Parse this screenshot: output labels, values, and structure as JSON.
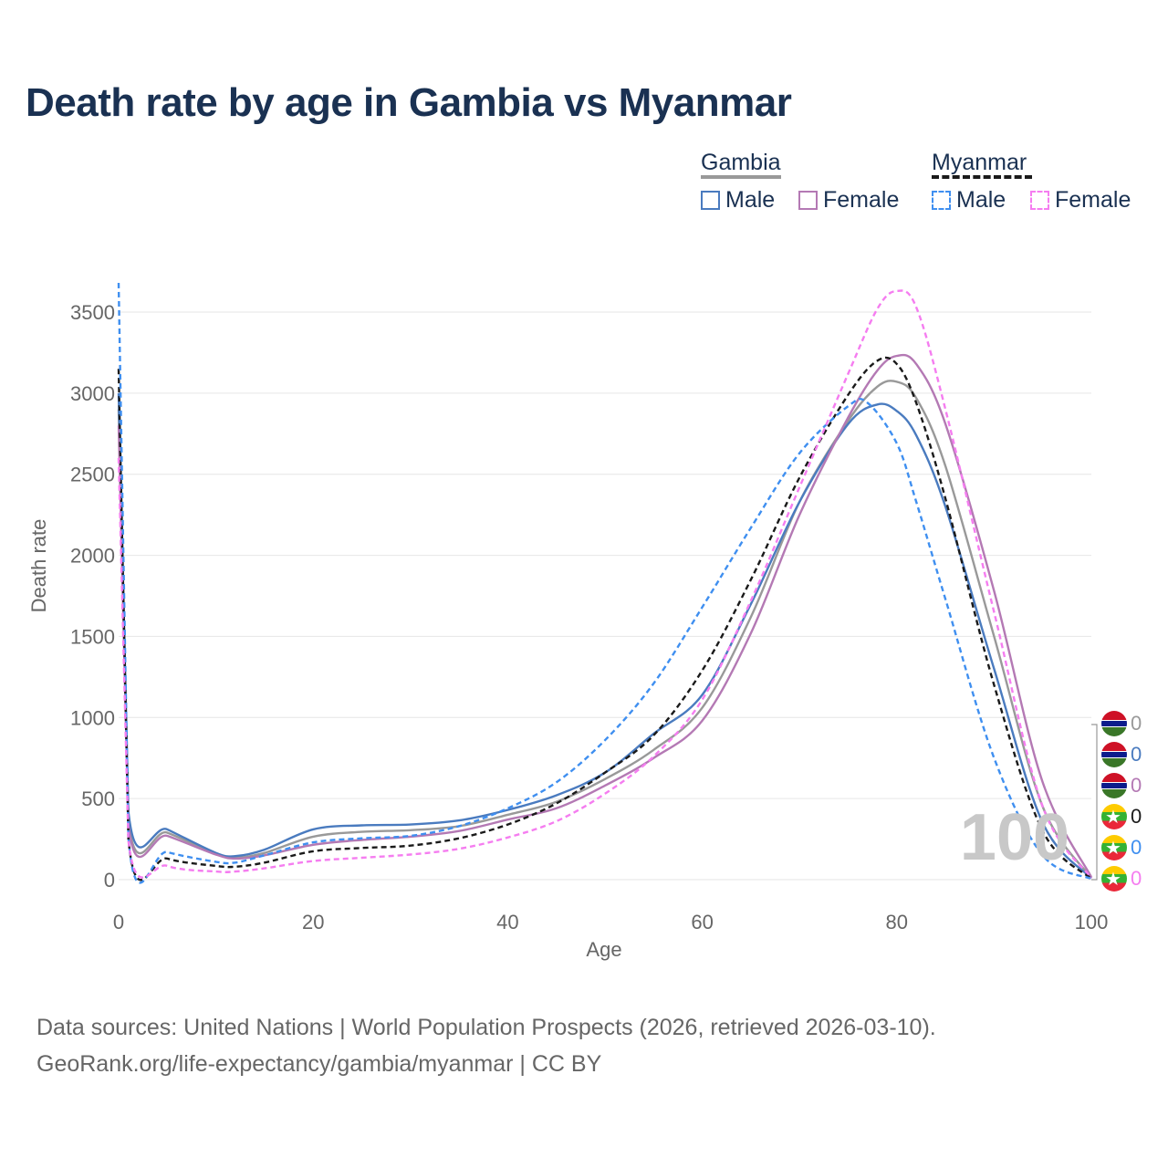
{
  "title": "Death rate by age in Gambia vs Myanmar",
  "legend": {
    "groups": [
      {
        "name": "Gambia",
        "line_color": "#999999",
        "dash": false,
        "items": [
          {
            "label": "Male",
            "color": "#4a7bbf"
          },
          {
            "label": "Female",
            "color": "#b479b4"
          }
        ]
      },
      {
        "name": "Myanmar",
        "line_color": "#1a1a1a",
        "dash": true,
        "items": [
          {
            "label": "Male",
            "color": "#3f8ff0"
          },
          {
            "label": "Female",
            "color": "#f57df0"
          }
        ]
      }
    ]
  },
  "watermark": "100",
  "source": {
    "line1": "Data sources: United Nations | World Population Prospects (2026, retrieved 2026-03-10).",
    "line2": "GeoRank.org/life-expectancy/gambia/myanmar | CC BY"
  },
  "end_markers": [
    {
      "country": "Gambia",
      "value": "0",
      "color": "#999999"
    },
    {
      "country": "Gambia",
      "value": "0",
      "color": "#4a7bbf"
    },
    {
      "country": "Gambia",
      "value": "0",
      "color": "#b479b4"
    },
    {
      "country": "Myanmar",
      "value": "0",
      "color": "#1a1a1a"
    },
    {
      "country": "Myanmar",
      "value": "0",
      "color": "#3f8ff0"
    },
    {
      "country": "Myanmar",
      "value": "0",
      "color": "#f57df0"
    }
  ],
  "chart_data": {
    "type": "line",
    "title": "Death rate by age in Gambia vs Myanmar",
    "xlabel": "Age",
    "ylabel": "Death rate",
    "xlim": [
      0,
      100
    ],
    "ylim": [
      0,
      3700
    ],
    "xticks": [
      0,
      20,
      40,
      60,
      80,
      100
    ],
    "yticks": [
      0,
      500,
      1000,
      1500,
      2000,
      2500,
      3000,
      3500
    ],
    "grid": true,
    "series": [
      {
        "name": "Gambia (total)",
        "color": "#999999",
        "dash": false,
        "x": [
          0,
          1,
          5,
          10,
          12,
          15,
          20,
          25,
          30,
          35,
          40,
          45,
          50,
          55,
          60,
          65,
          70,
          75,
          78,
          80,
          82,
          85,
          90,
          95,
          100
        ],
        "y": [
          2900,
          370,
          290,
          160,
          135,
          165,
          265,
          295,
          305,
          330,
          400,
          480,
          620,
          800,
          1060,
          1620,
          2330,
          2830,
          3040,
          3070,
          2970,
          2550,
          1500,
          450,
          10
        ]
      },
      {
        "name": "Gambia Male",
        "color": "#4a7bbf",
        "dash": false,
        "x": [
          0,
          1,
          5,
          10,
          12,
          15,
          20,
          25,
          30,
          35,
          40,
          45,
          50,
          55,
          60,
          65,
          70,
          75,
          78,
          80,
          82,
          85,
          90,
          95,
          100
        ],
        "y": [
          3000,
          420,
          310,
          165,
          145,
          185,
          310,
          335,
          340,
          365,
          430,
          520,
          660,
          900,
          1140,
          1700,
          2330,
          2810,
          2930,
          2890,
          2740,
          2300,
          1300,
          350,
          8
        ]
      },
      {
        "name": "Gambia Female",
        "color": "#b479b4",
        "dash": false,
        "x": [
          0,
          1,
          5,
          10,
          12,
          15,
          20,
          25,
          30,
          35,
          40,
          45,
          50,
          55,
          60,
          65,
          70,
          75,
          78,
          80,
          82,
          85,
          90,
          95,
          100
        ],
        "y": [
          2800,
          340,
          270,
          155,
          130,
          150,
          215,
          245,
          265,
          300,
          370,
          440,
          580,
          750,
          980,
          1520,
          2250,
          2850,
          3140,
          3230,
          3180,
          2810,
          1780,
          600,
          15
        ]
      },
      {
        "name": "Myanmar (total)",
        "color": "#1a1a1a",
        "dash": true,
        "x": [
          0,
          1,
          5,
          10,
          12,
          15,
          20,
          25,
          30,
          35,
          40,
          45,
          50,
          55,
          60,
          65,
          70,
          75,
          78,
          80,
          82,
          85,
          90,
          95,
          100
        ],
        "y": [
          3150,
          250,
          130,
          85,
          80,
          105,
          175,
          195,
          210,
          255,
          340,
          470,
          660,
          890,
          1290,
          1850,
          2480,
          2990,
          3200,
          3180,
          2940,
          2350,
          1200,
          300,
          5
        ]
      },
      {
        "name": "Myanmar Male",
        "color": "#3f8ff0",
        "dash": true,
        "x": [
          0,
          1,
          5,
          10,
          12,
          15,
          20,
          25,
          30,
          35,
          40,
          45,
          50,
          55,
          60,
          65,
          70,
          75,
          77,
          80,
          82,
          85,
          90,
          95,
          100
        ],
        "y": [
          3680,
          260,
          170,
          110,
          105,
          150,
          230,
          255,
          270,
          330,
          440,
          600,
          860,
          1210,
          1680,
          2170,
          2630,
          2920,
          2940,
          2690,
          2330,
          1730,
          750,
          150,
          5
        ]
      },
      {
        "name": "Myanmar Female",
        "color": "#f57df0",
        "dash": true,
        "x": [
          0,
          1,
          5,
          10,
          12,
          15,
          20,
          25,
          30,
          35,
          40,
          45,
          50,
          55,
          60,
          65,
          70,
          75,
          78,
          80,
          82,
          85,
          90,
          95,
          100
        ],
        "y": [
          2600,
          240,
          85,
          50,
          50,
          70,
          115,
          135,
          155,
          190,
          260,
          360,
          530,
          760,
          1110,
          1720,
          2420,
          3120,
          3520,
          3630,
          3530,
          2900,
          1650,
          450,
          10
        ]
      }
    ]
  }
}
